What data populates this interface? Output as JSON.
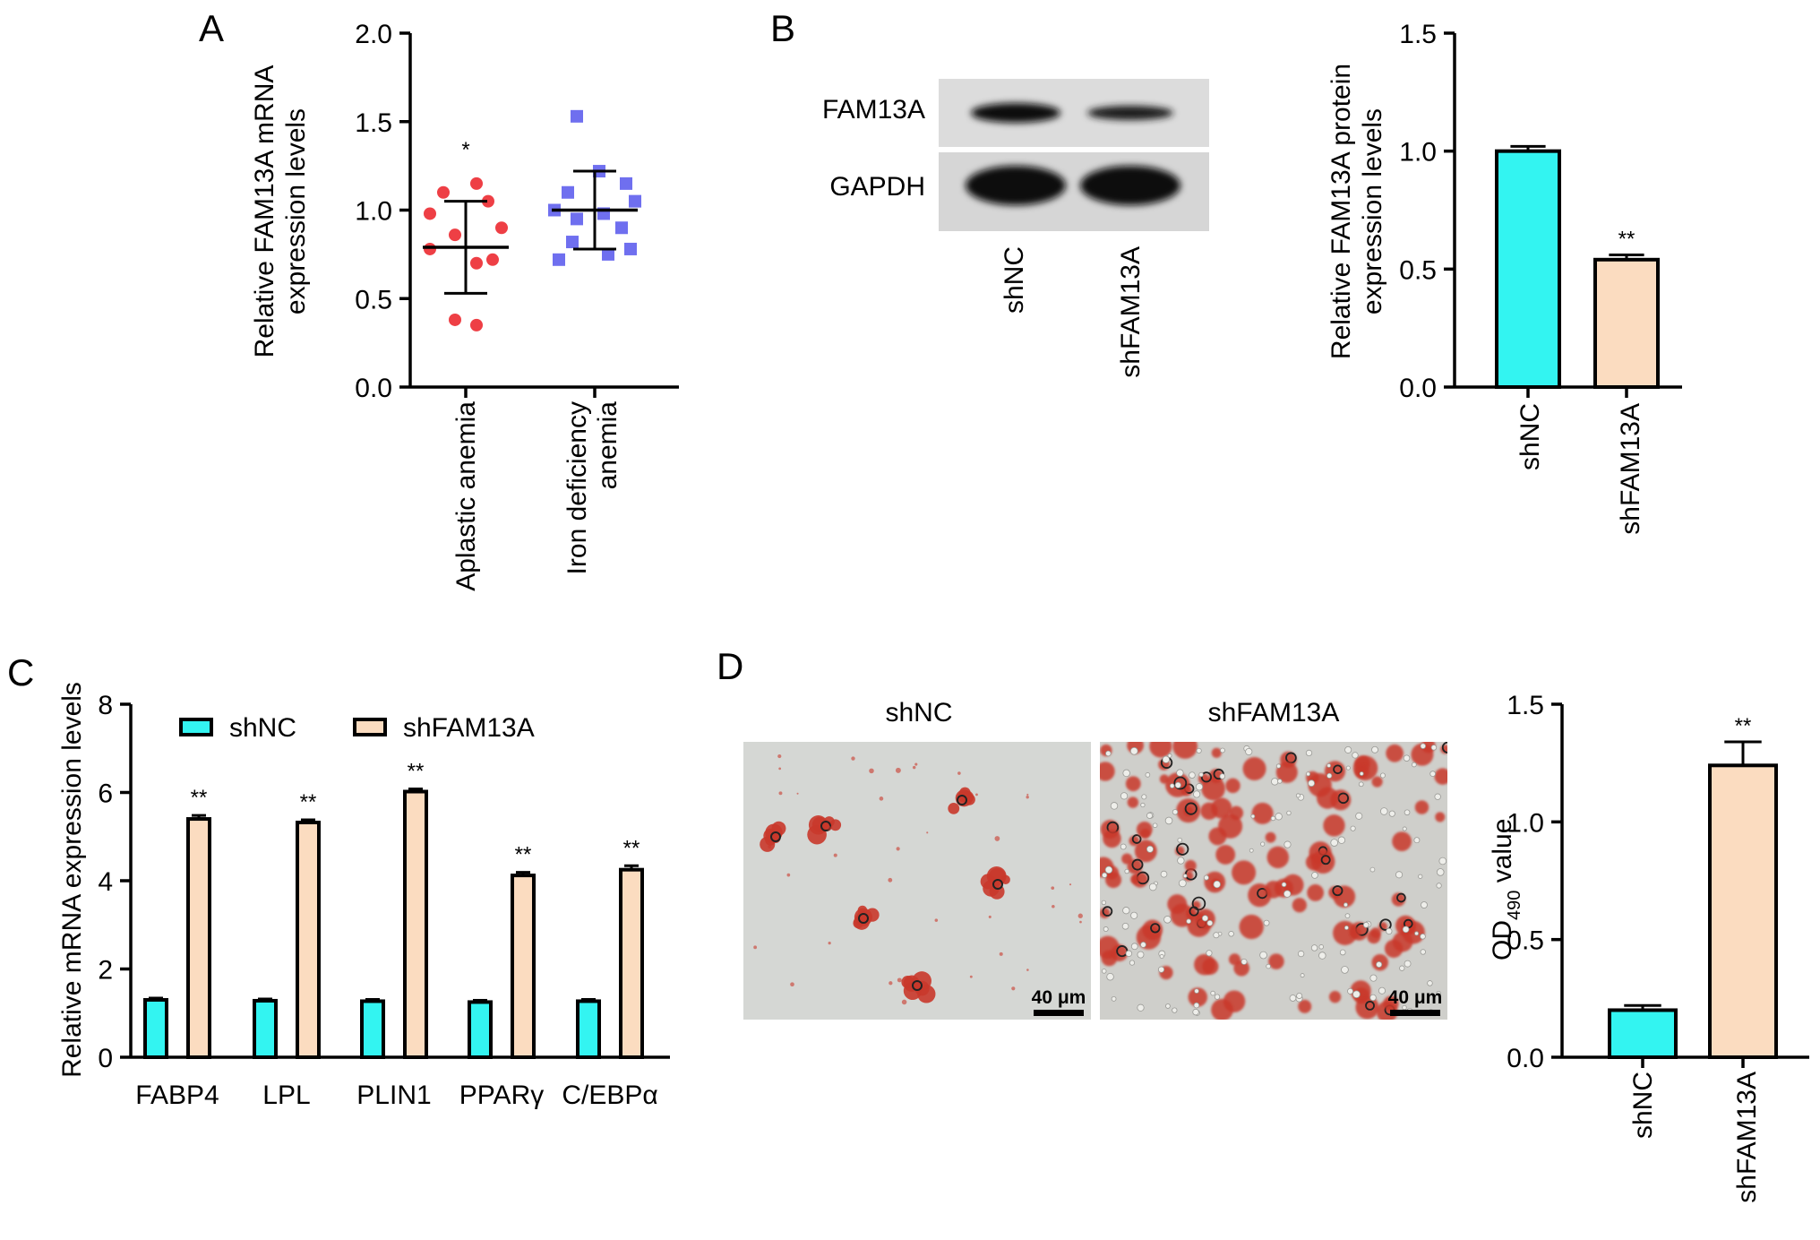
{
  "panels": {
    "A": "A",
    "B": "B",
    "C": "C",
    "D": "D"
  },
  "colors": {
    "shNC": "#33f4f1",
    "shFAM13A": "#fbdcc0",
    "aplastic": "#ee3f45",
    "iron": "#6f6fef",
    "stain": "#c9392b",
    "background_gray": "#d7d8d6"
  },
  "panelA": {
    "ylabel_line1": "Relative FAM13A mRNA",
    "ylabel_line2": "expression levels",
    "groups": [
      {
        "label": "Aplastic anemia",
        "marker": "circle"
      },
      {
        "label_line1": "Iron deficiency",
        "label_line2": "anemia",
        "marker": "square"
      }
    ]
  },
  "panelB_blot": {
    "row_labels": [
      "FAM13A",
      "GAPDH"
    ],
    "lane_labels": [
      "shNC",
      "shFAM13A"
    ],
    "blot_bands": {
      "FAM13A": [
        1.0,
        0.7
      ],
      "GAPDH": [
        1.0,
        1.0
      ]
    }
  },
  "panelB_chart": {
    "ylabel_line1": "Relative FAM13A protein",
    "ylabel_line2": "expression levels",
    "categories": [
      "shNC",
      "shFAM13A"
    ],
    "significance": [
      "",
      "**"
    ]
  },
  "panelC": {
    "ylabel": "Relative mRNA expression levels",
    "legend": [
      "shNC",
      "shFAM13A"
    ],
    "categories": [
      "FABP4",
      "LPL",
      "PLIN1",
      "PPARγ",
      "C/EBPα"
    ]
  },
  "panelD_images": {
    "titles": [
      "shNC",
      "shFAM13A"
    ],
    "scale_bar": "40 μm",
    "stained_clusters": [
      6,
      120
    ]
  },
  "panelD_chart": {
    "ylabel_main": "OD",
    "ylabel_sub": "490",
    "ylabel_tail": " value",
    "categories": [
      "shNC",
      "shFAM13A"
    ],
    "significance": [
      "",
      "**"
    ]
  },
  "chart_data": [
    {
      "id": "A",
      "type": "scatter",
      "categories": [
        "Aplastic anemia",
        "Iron deficiency anemia"
      ],
      "series": [
        {
          "name": "Aplastic anemia",
          "values": [
            1.15,
            1.1,
            1.05,
            0.98,
            0.9,
            0.86,
            0.78,
            0.72,
            0.7,
            0.38,
            0.35
          ],
          "mean": 0.79,
          "sd": 0.26
        },
        {
          "name": "Iron deficiency anemia",
          "values": [
            1.53,
            1.22,
            1.15,
            1.1,
            1.05,
            1.0,
            0.98,
            0.95,
            0.9,
            0.82,
            0.78,
            0.75,
            0.72
          ],
          "mean": 1.0,
          "sd": 0.22
        }
      ],
      "significance": [
        "*",
        ""
      ],
      "ylim": [
        0,
        2.0
      ],
      "yticks": [
        0.0,
        0.5,
        1.0,
        1.5,
        2.0
      ]
    },
    {
      "id": "B",
      "type": "bar",
      "categories": [
        "shNC",
        "shFAM13A"
      ],
      "values": [
        1.0,
        0.54
      ],
      "errors": [
        0.02,
        0.02
      ],
      "ylim": [
        0,
        1.5
      ],
      "yticks": [
        0.0,
        0.5,
        1.0,
        1.5
      ]
    },
    {
      "id": "C",
      "type": "bar",
      "categories": [
        "FABP4",
        "LPL",
        "PLIN1",
        "PPARγ",
        "C/EBPα"
      ],
      "series": [
        {
          "name": "shNC",
          "values": [
            1.3,
            1.28,
            1.27,
            1.25,
            1.27
          ],
          "errors": [
            0.04,
            0.04,
            0.04,
            0.04,
            0.04
          ]
        },
        {
          "name": "shFAM13A",
          "values": [
            5.4,
            5.32,
            6.02,
            4.12,
            4.25
          ],
          "errors": [
            0.08,
            0.06,
            0.06,
            0.07,
            0.09
          ]
        }
      ],
      "significance": [
        "**",
        "**",
        "**",
        "**",
        "**"
      ],
      "ylim": [
        0,
        8
      ],
      "yticks": [
        0,
        2,
        4,
        6,
        8
      ]
    },
    {
      "id": "D",
      "type": "bar",
      "categories": [
        "shNC",
        "shFAM13A"
      ],
      "values": [
        0.2,
        1.24
      ],
      "errors": [
        0.02,
        0.1
      ],
      "ylim": [
        0,
        1.5
      ],
      "yticks": [
        0.0,
        0.5,
        1.0,
        1.5
      ]
    }
  ]
}
